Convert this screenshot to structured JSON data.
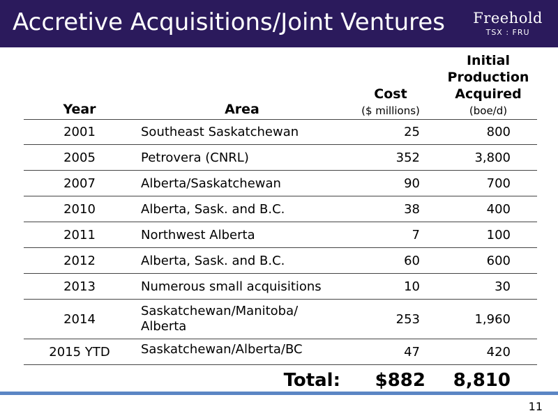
{
  "header": {
    "title": "Accretive Acquisitions/Joint Ventures",
    "brand_name": "Freehold",
    "brand_ticker": "TSX : FRU",
    "background": "#2b1a5c"
  },
  "table": {
    "columns": {
      "year": "Year",
      "area": "Area",
      "cost": "Cost",
      "cost_unit": "($ millions)",
      "prod_line1": "Initial",
      "prod_line2": "Production",
      "prod_line3": "Acquired",
      "prod_unit": "(boe/d)"
    },
    "rows": [
      {
        "year": "2001",
        "area": "Southeast Saskatchewan",
        "cost": "25",
        "production": "800"
      },
      {
        "year": "2005",
        "area": "Petrovera (CNRL)",
        "cost": "352",
        "production": "3,800"
      },
      {
        "year": "2007",
        "area": "Alberta/Saskatchewan",
        "cost": "90",
        "production": "700"
      },
      {
        "year": "2010",
        "area": "Alberta, Sask. and B.C.",
        "cost": "38",
        "production": "400"
      },
      {
        "year": "2011",
        "area": "Northwest Alberta",
        "cost": "7",
        "production": "100"
      },
      {
        "year": "2012",
        "area": "Alberta, Sask. and B.C.",
        "cost": "60",
        "production": "600"
      },
      {
        "year": "2013",
        "area": "Numerous small acquisitions",
        "cost": "10",
        "production": "30"
      },
      {
        "year": "2014",
        "area_line1": "Saskatchewan/Manitoba/",
        "area_line2": "Alberta",
        "cost": "253",
        "production": "1,960"
      },
      {
        "year": "2015 YTD",
        "area": "Saskatchewan/Alberta/BC",
        "cost": "47",
        "production": "420"
      }
    ],
    "total": {
      "label": "Total:",
      "cost": "$882",
      "production": "8,810"
    }
  },
  "footer": {
    "page_number": "11",
    "accent": "#5b86c4"
  }
}
